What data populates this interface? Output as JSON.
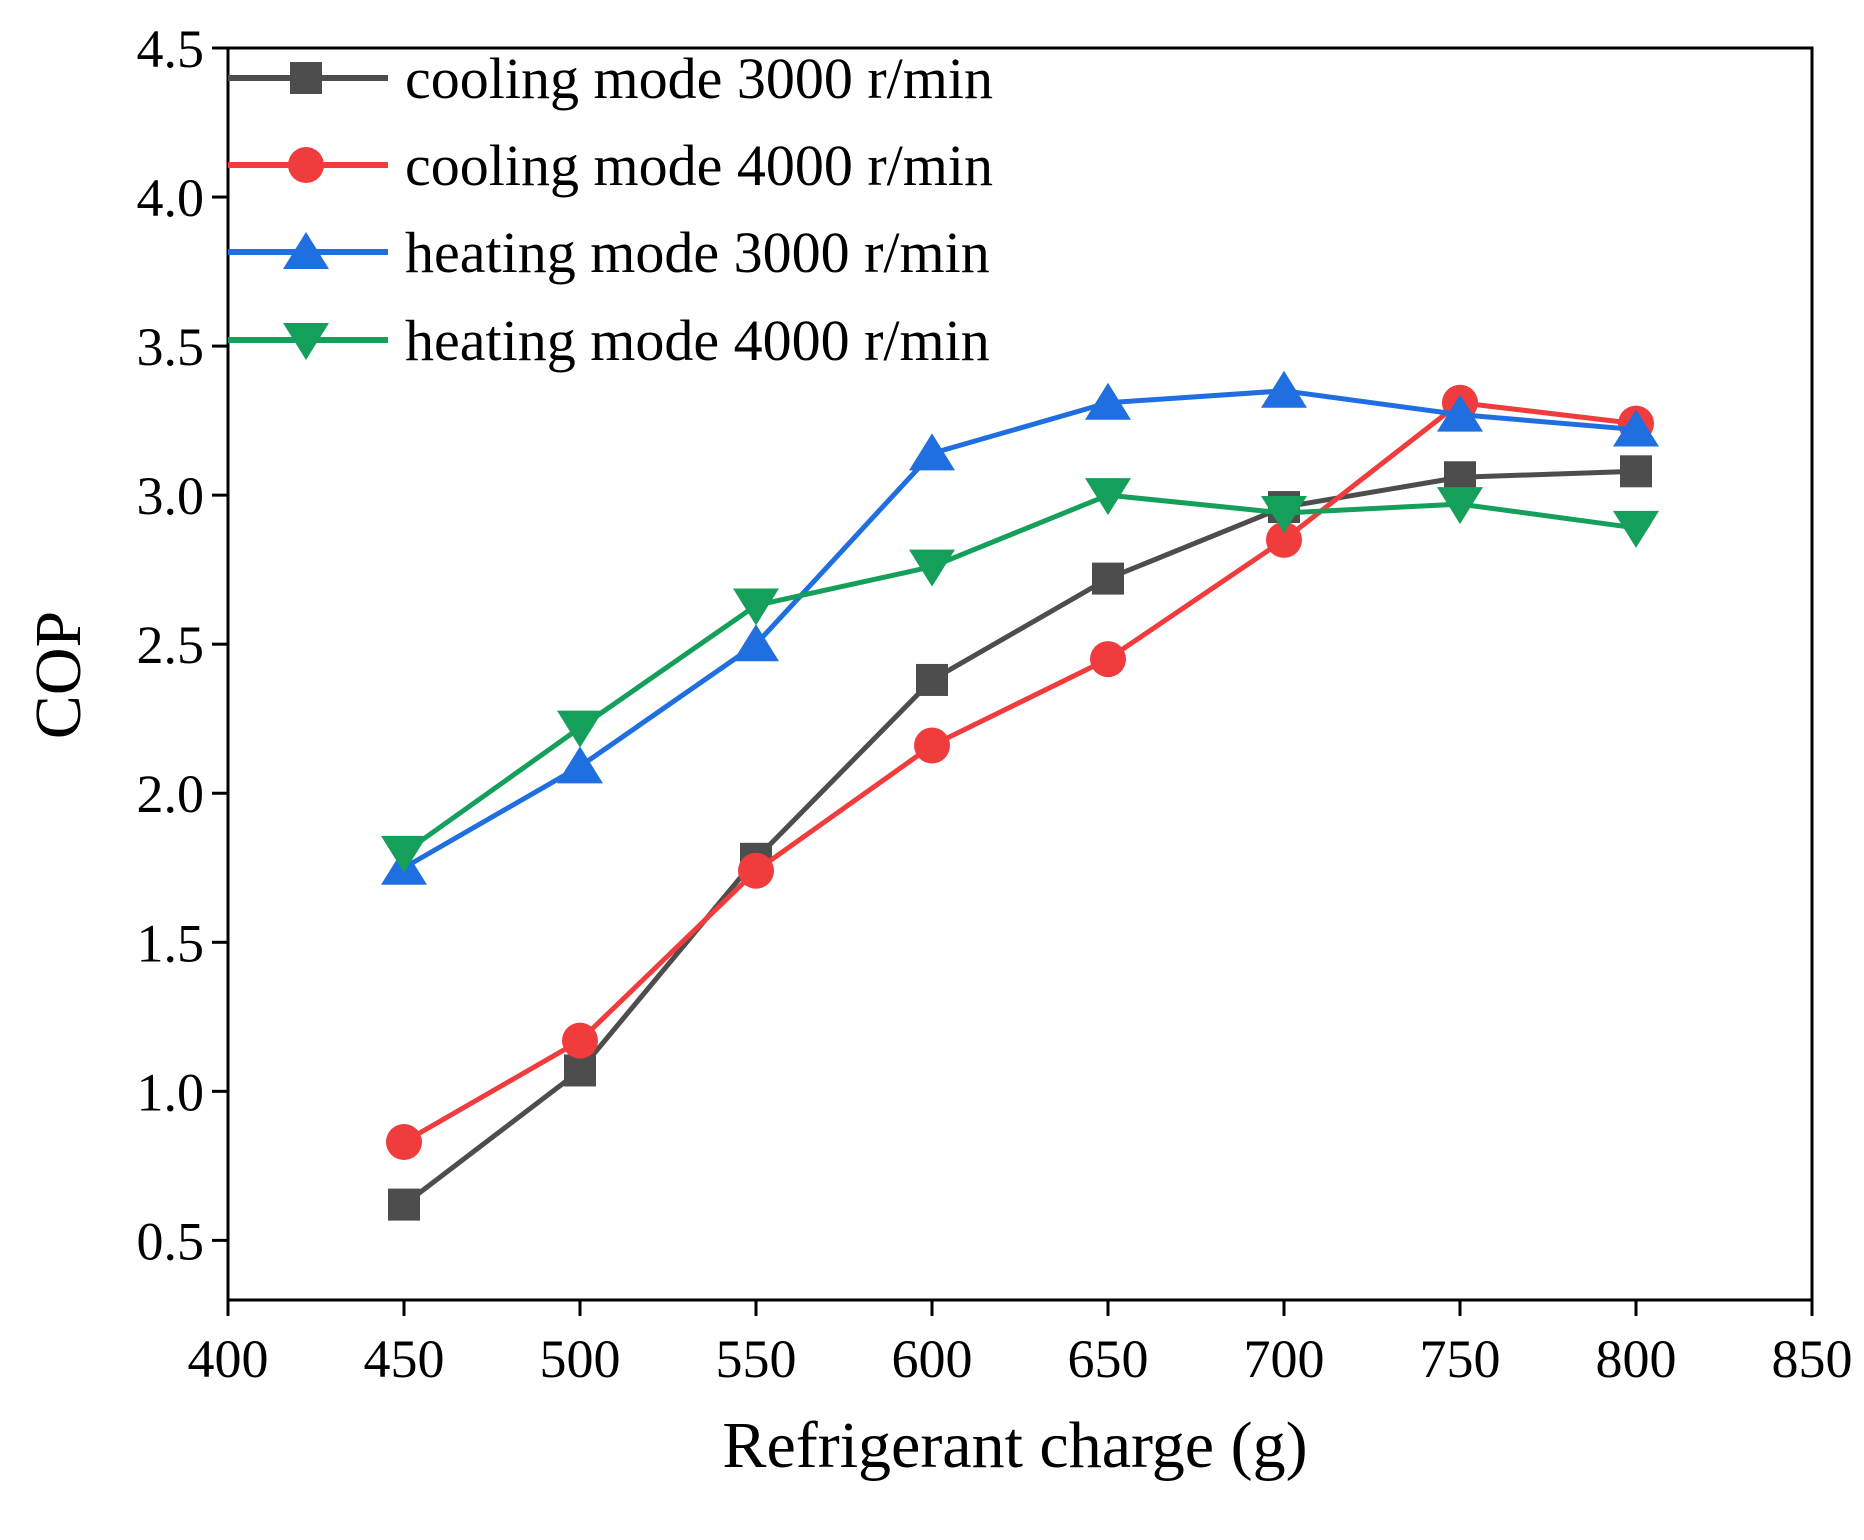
{
  "chart_data": {
    "type": "line",
    "title": "",
    "xlabel": "Refrigerant charge (g)",
    "ylabel": "COP",
    "xlim": [
      400,
      850
    ],
    "ylim": [
      0.3,
      4.5
    ],
    "x_ticks": [
      "400",
      "450",
      "500",
      "550",
      "600",
      "650",
      "700",
      "750",
      "800",
      "850"
    ],
    "y_ticks": [
      "0.5",
      "1.0",
      "1.5",
      "2.0",
      "2.5",
      "3.0",
      "3.5",
      "4.0",
      "4.5"
    ],
    "grid": false,
    "legend_position": "top-left",
    "x": [
      450,
      500,
      550,
      600,
      650,
      700,
      750,
      800
    ],
    "series": [
      {
        "name": "cooling mode 3000 r/min",
        "marker": "square",
        "color": "#4d4d4d",
        "values": [
          0.62,
          1.07,
          1.78,
          2.38,
          2.72,
          2.96,
          3.06,
          3.08
        ]
      },
      {
        "name": "cooling mode 4000 r/min",
        "marker": "circle",
        "color": "#f03c3c",
        "values": [
          0.83,
          1.17,
          1.74,
          2.16,
          2.45,
          2.85,
          3.31,
          3.24
        ]
      },
      {
        "name": "heating mode 3000 r/min",
        "marker": "triangle-up",
        "color": "#1f6fe0",
        "values": [
          1.75,
          2.09,
          2.5,
          3.14,
          3.31,
          3.35,
          3.27,
          3.22
        ]
      },
      {
        "name": "heating mode 4000 r/min",
        "marker": "triangle-down",
        "color": "#14a05a",
        "values": [
          1.8,
          2.22,
          2.63,
          2.76,
          3.0,
          2.94,
          2.97,
          2.89
        ]
      }
    ]
  }
}
